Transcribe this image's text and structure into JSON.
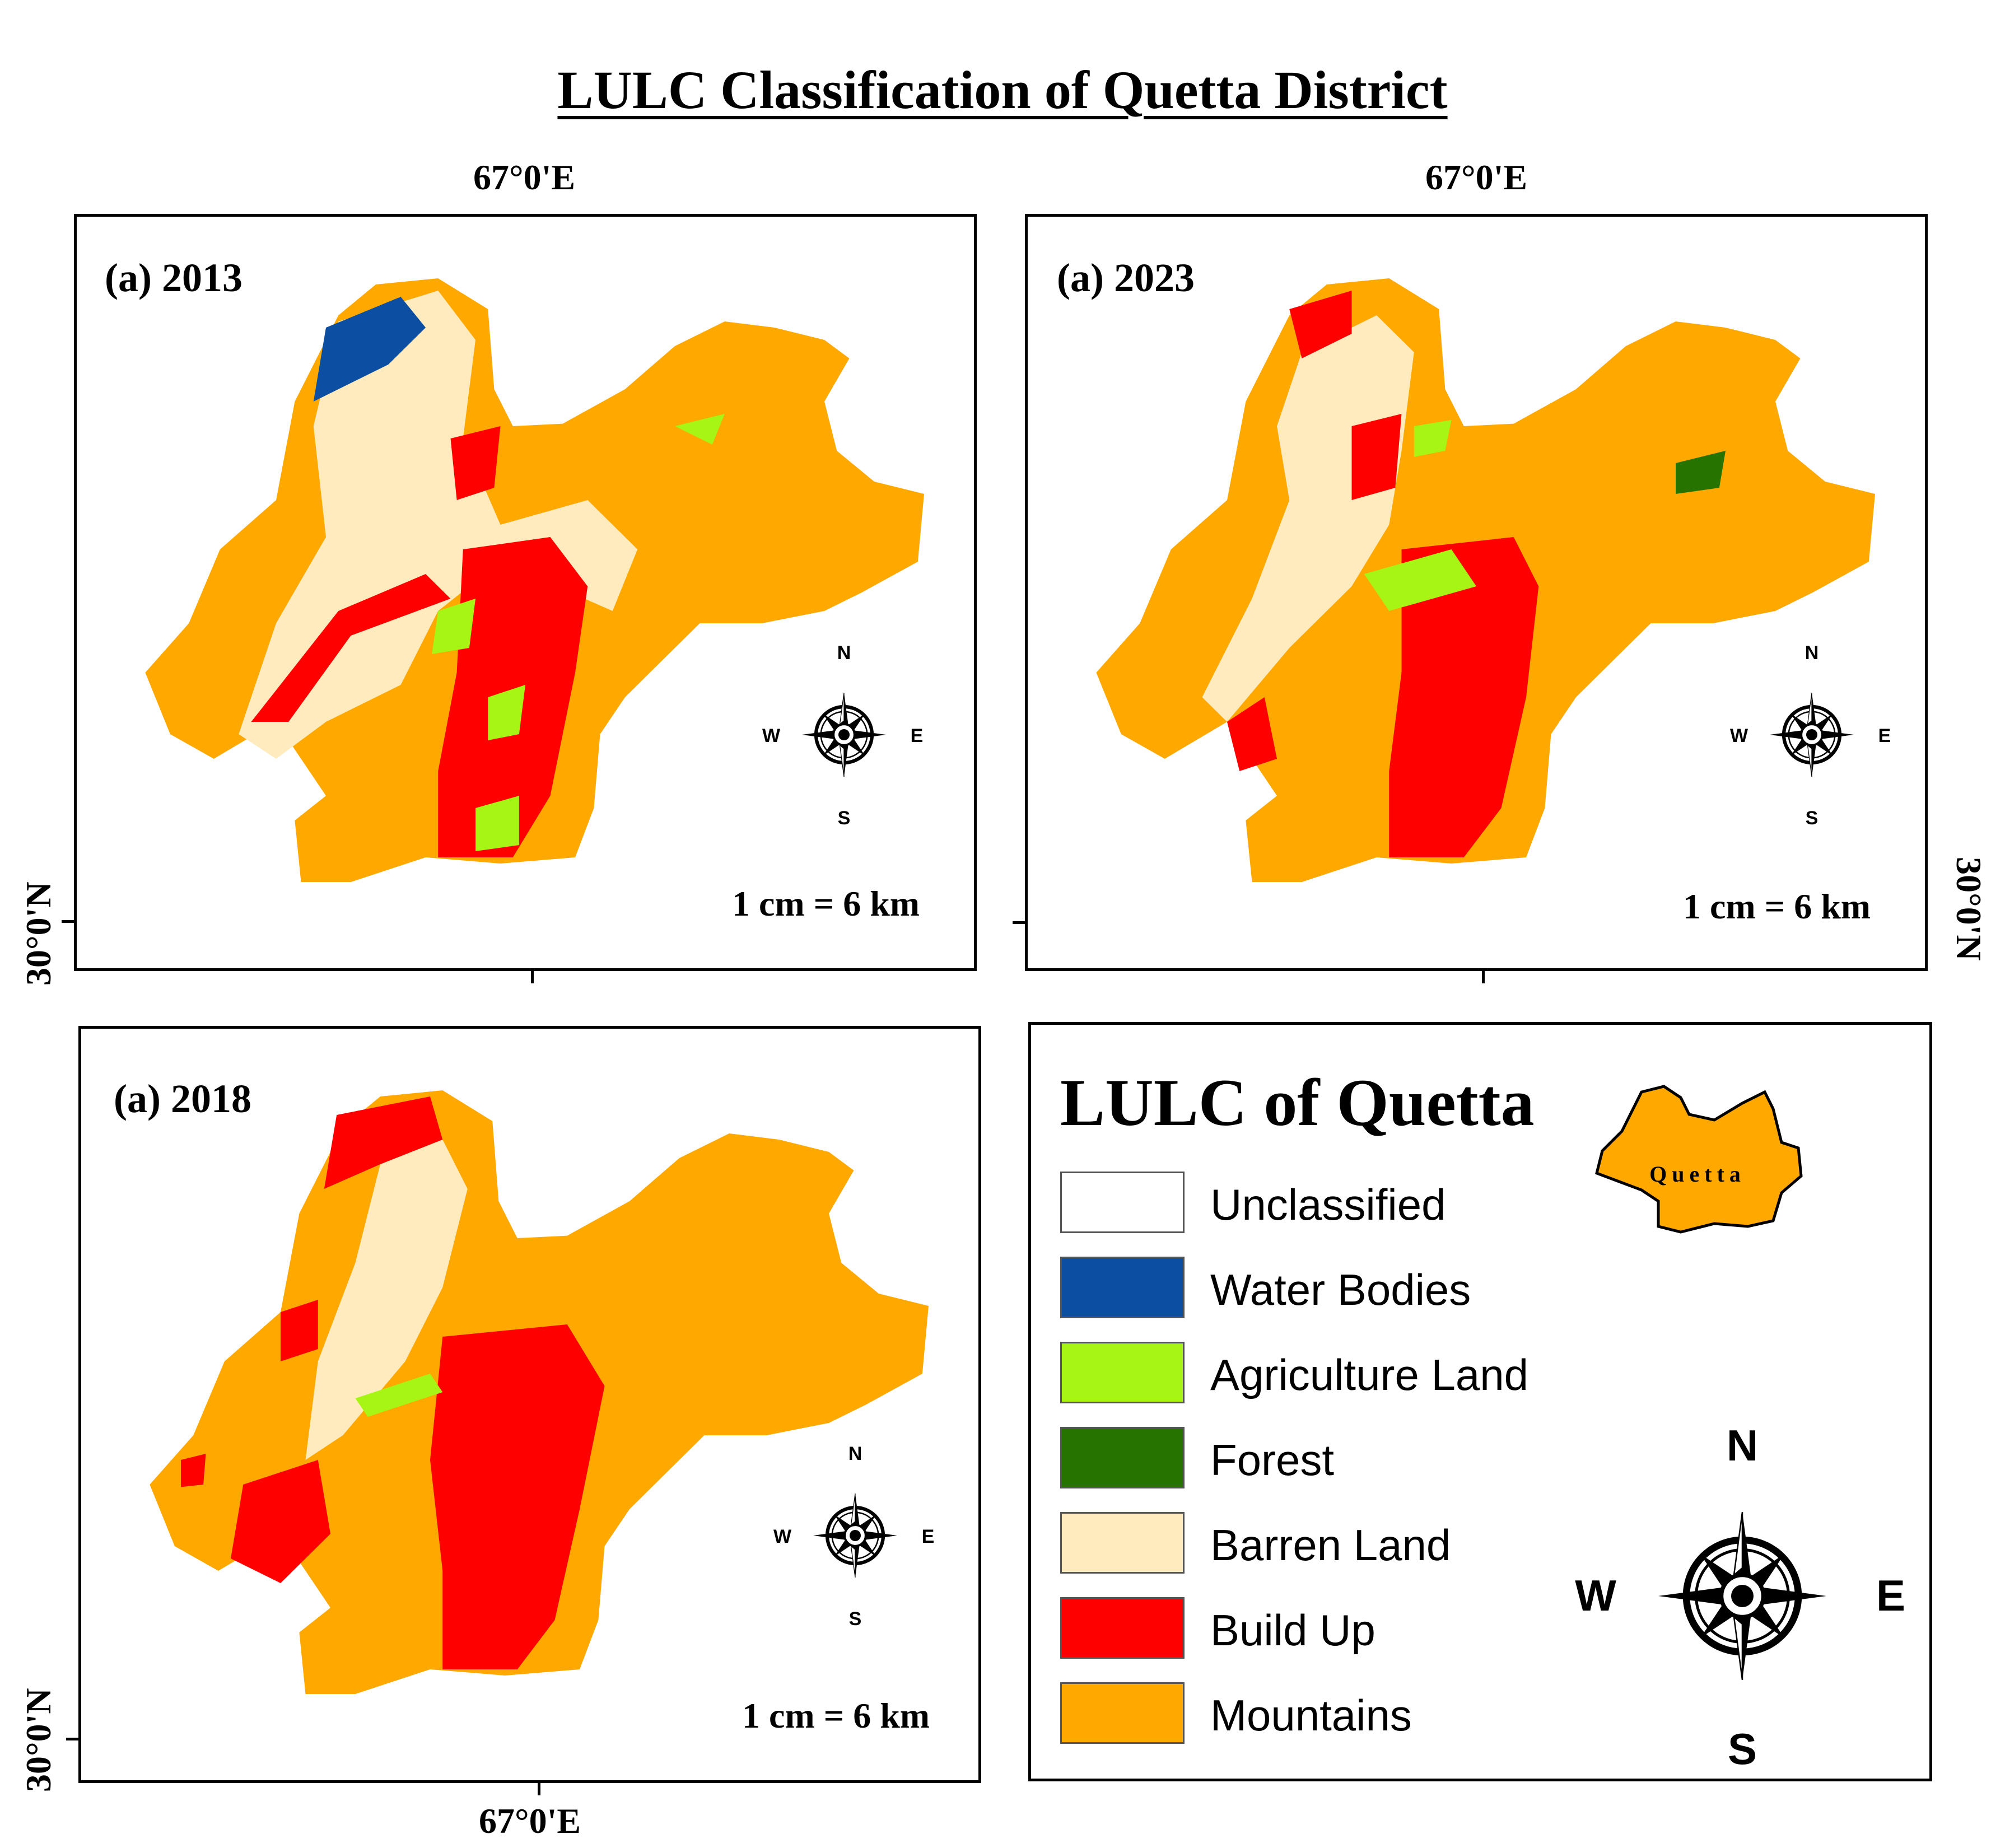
{
  "title": "LULC Classification of Quetta District",
  "coords": {
    "lon": "67°0'E",
    "lat": "30°0'N"
  },
  "scale": "1 cm = 6 km",
  "panels": [
    {
      "label": "(a) 2013"
    },
    {
      "label": "(a) 2023"
    },
    {
      "label": "(a) 2018"
    }
  ],
  "legend": {
    "title": "LULC of Quetta",
    "inset_label": "Quetta",
    "items": [
      {
        "label": "Unclassified",
        "color": "#ffffff"
      },
      {
        "label": "Water Bodies",
        "color": "#0b4ea2"
      },
      {
        "label": "Agriculture Land",
        "color": "#a6f514"
      },
      {
        "label": "Forest",
        "color": "#267300"
      },
      {
        "label": "Barren Land",
        "color": "#ffebbe"
      },
      {
        "label": "Build Up",
        "color": "#ff0000"
      },
      {
        "label": "Mountains",
        "color": "#ffa800"
      }
    ]
  },
  "compass": {
    "n": "N",
    "s": "S",
    "e": "E",
    "w": "W"
  }
}
